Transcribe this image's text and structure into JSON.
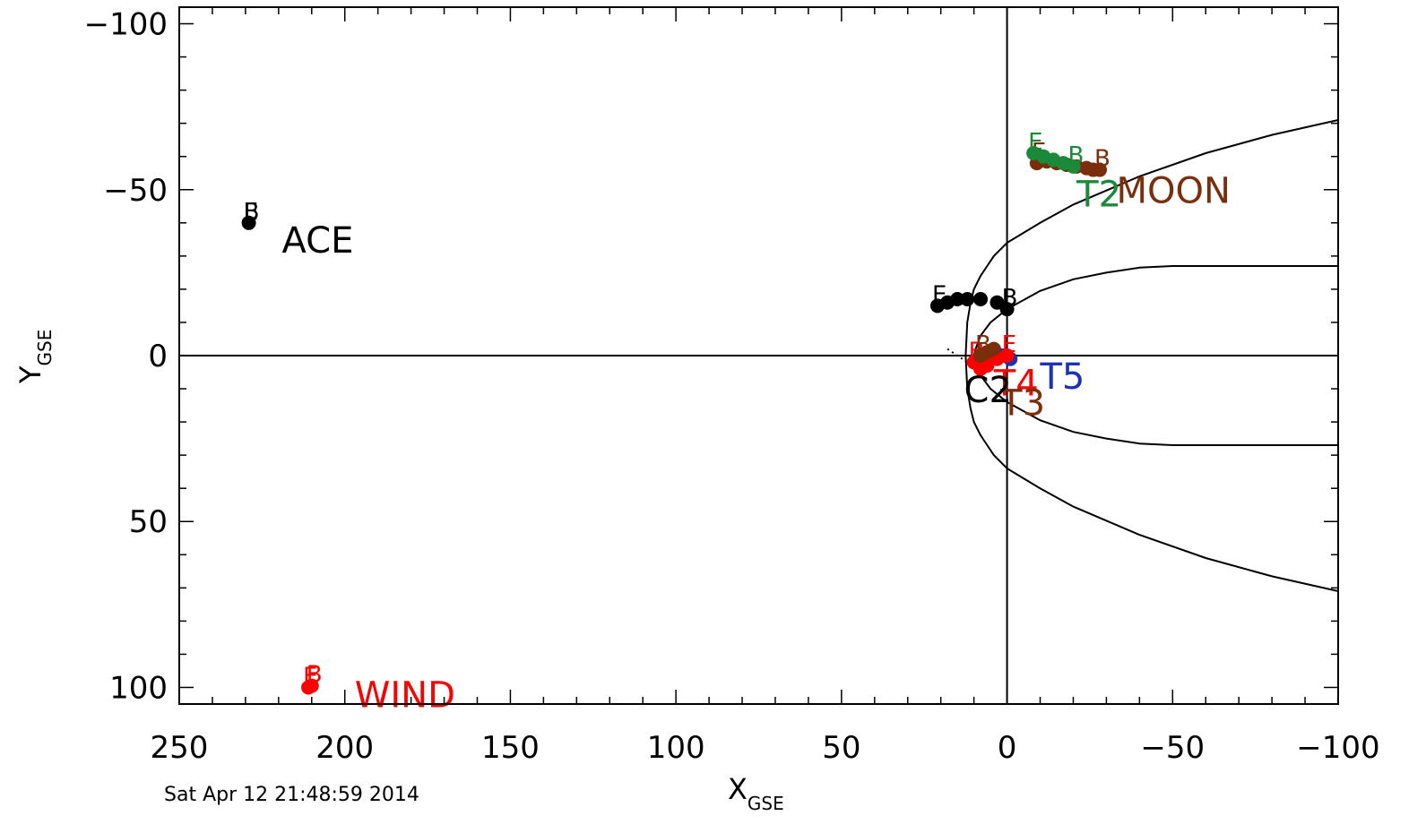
{
  "timestamp": "Sat Apr 12 21:48:59 2014",
  "chart_data": {
    "type": "scatter",
    "xlabel": {
      "main": "X",
      "sub": "GSE"
    },
    "ylabel": {
      "main": "Y",
      "sub": "GSE"
    },
    "xlim": [
      250,
      -100
    ],
    "ylim": [
      -105,
      105
    ],
    "x_ticks": [
      250,
      200,
      150,
      100,
      50,
      0,
      -50,
      -100
    ],
    "x_tick_labels": [
      "250",
      "200",
      "150",
      "100",
      "50",
      "0",
      "−50",
      "−100"
    ],
    "y_ticks": [
      -100,
      -50,
      0,
      50,
      100
    ],
    "y_tick_labels": [
      "−100",
      "−50",
      "0",
      "50",
      "100"
    ],
    "reference_lines": [
      {
        "axis": "x",
        "value": 0
      },
      {
        "axis": "y",
        "value": 0
      }
    ],
    "boundaries": [
      {
        "name": "",
        "color": "#000000",
        "style": "solid",
        "points": [
          [
            -100,
            -71
          ],
          [
            -80,
            -66.5
          ],
          [
            -60,
            -61
          ],
          [
            -40,
            -54
          ],
          [
            -20,
            -45.5
          ],
          [
            -10,
            -40
          ],
          [
            0,
            -34
          ],
          [
            2,
            -32
          ],
          [
            4,
            -30
          ],
          [
            6,
            -27
          ],
          [
            8,
            -24
          ],
          [
            10,
            -20
          ],
          [
            11,
            -16
          ],
          [
            12,
            -10
          ],
          [
            12.5,
            0
          ],
          [
            12,
            10
          ],
          [
            11,
            16
          ],
          [
            10,
            20
          ],
          [
            8,
            24
          ],
          [
            6,
            27
          ],
          [
            4,
            30
          ],
          [
            2,
            32
          ],
          [
            0,
            34
          ],
          [
            -10,
            40
          ],
          [
            -20,
            45.5
          ],
          [
            -40,
            54
          ],
          [
            -60,
            61
          ],
          [
            -80,
            66.5
          ],
          [
            -100,
            71
          ]
        ]
      },
      {
        "name": "",
        "color": "#000000",
        "style": "solid",
        "points": [
          [
            -100,
            -27
          ],
          [
            -50,
            -27
          ],
          [
            -40,
            -26.5
          ],
          [
            -30,
            -25
          ],
          [
            -20,
            -23
          ],
          [
            -10,
            -19.5
          ],
          [
            0,
            -14
          ],
          [
            5,
            -10
          ],
          [
            8,
            -6
          ],
          [
            9.5,
            -2
          ],
          [
            10,
            0
          ],
          [
            9.5,
            2
          ],
          [
            8,
            6
          ],
          [
            5,
            10
          ],
          [
            0,
            14
          ],
          [
            -10,
            19.5
          ],
          [
            -20,
            23
          ],
          [
            -30,
            25
          ],
          [
            -40,
            26.5
          ],
          [
            -50,
            27
          ],
          [
            -100,
            27
          ]
        ]
      },
      {
        "name": "",
        "color": "#000000",
        "style": "dotted",
        "points": [
          [
            18,
            -2
          ],
          [
            15,
            0
          ],
          [
            12,
            2
          ],
          [
            10,
            4
          ],
          [
            8,
            6
          ]
        ]
      }
    ],
    "series": [
      {
        "name": "ACE",
        "color": "#000000",
        "x": [
          229
        ],
        "y": [
          -40
        ],
        "markers": [
          "B",
          "E"
        ]
      },
      {
        "name": "WIND",
        "color": "#ff0000",
        "x": [
          211,
          210
        ],
        "y": [
          100,
          99.5
        ],
        "markers": [
          "B",
          "E"
        ]
      },
      {
        "name": "",
        "color": "#000000",
        "x": [
          21,
          18,
          15,
          12,
          8,
          3,
          0
        ],
        "y": [
          -15,
          -16,
          -17,
          -17,
          -17,
          -16,
          -14
        ],
        "markers": [
          "E",
          "B"
        ]
      },
      {
        "name": "MOON",
        "color": "#7a2e0c",
        "x": [
          -9,
          -12,
          -15,
          -18,
          -21,
          -24,
          -26,
          -28
        ],
        "y": [
          -58,
          -58.5,
          -58,
          -57.5,
          -57,
          -56.5,
          -56,
          -56
        ],
        "markers": [
          "E",
          "B"
        ]
      },
      {
        "name": "T2",
        "color": "#1a8a3a",
        "x": [
          -8,
          -11,
          -14,
          -17,
          -20
        ],
        "y": [
          -61,
          -60,
          -59,
          -58,
          -57
        ],
        "markers": [
          "E",
          "B"
        ]
      },
      {
        "name": "T5",
        "color": "#1c32b4",
        "x": [
          -1,
          1,
          3
        ],
        "y": [
          1,
          0,
          -0.5
        ],
        "markers": []
      },
      {
        "name": "T4",
        "color": "#ff0000",
        "x": [
          0,
          3,
          6,
          8,
          10
        ],
        "y": [
          0,
          1,
          3,
          4,
          2
        ],
        "markers": [
          "B",
          "E"
        ]
      },
      {
        "name": "T3",
        "color": "#7a2e0c",
        "x": [
          4,
          6,
          8
        ],
        "y": [
          -2,
          -1,
          0
        ],
        "markers": [
          "B"
        ]
      },
      {
        "name": "C2",
        "color": "#000000",
        "x": [],
        "y": [],
        "markers": []
      }
    ],
    "labels": [
      {
        "text": "ACE",
        "color": "#000000",
        "x": 219,
        "y": -31
      },
      {
        "text": "WIND",
        "color": "#ff0000",
        "x": 197,
        "y": 106
      },
      {
        "text": "MOON",
        "color": "#7a2e0c",
        "x": -33,
        "y": -46
      },
      {
        "text": "T2",
        "color": "#1a8a3a",
        "x": -21,
        "y": -45
      },
      {
        "text": "T5",
        "color": "#1c32b4",
        "x": -10,
        "y": 10
      },
      {
        "text": "T4",
        "color": "#ff0000",
        "x": 4,
        "y": 12
      },
      {
        "text": "T3",
        "color": "#7a2e0c",
        "x": 2,
        "y": 18
      },
      {
        "text": "C2",
        "color": "#000000",
        "x": 13,
        "y": 14
      }
    ]
  }
}
